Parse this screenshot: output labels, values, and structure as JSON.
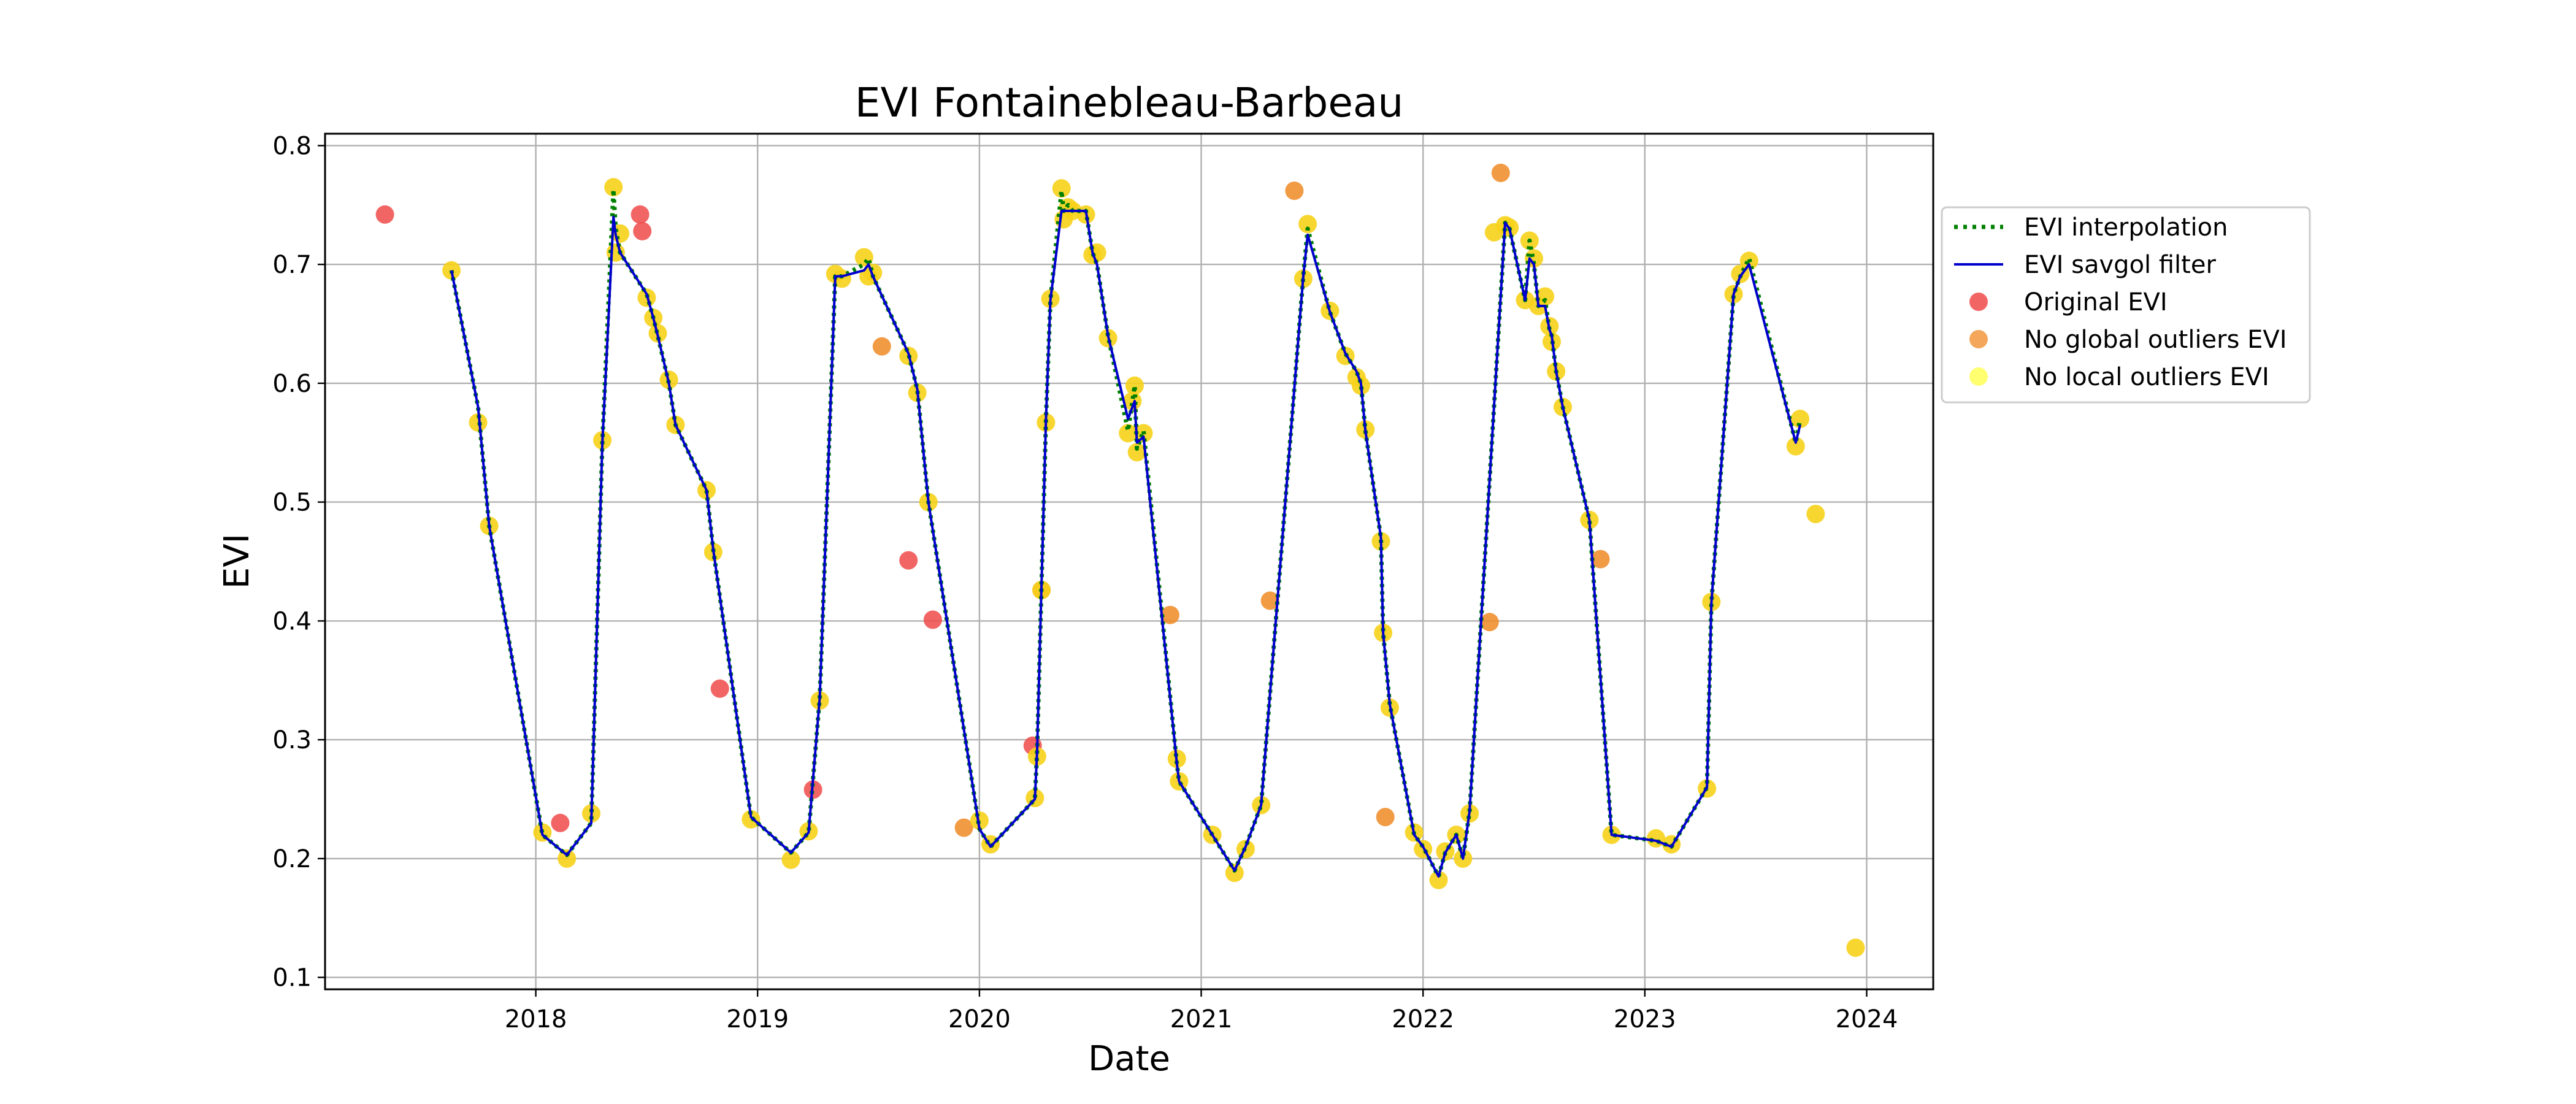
{
  "chart_data": {
    "type": "line",
    "title": "EVI Fontainebleau-Barbeau",
    "xlabel": "Date",
    "ylabel": "EVI",
    "xlim": [
      2017.05,
      2024.3
    ],
    "ylim": [
      0.09,
      0.81
    ],
    "x_ticks": [
      {
        "value": 2018,
        "label": "2018"
      },
      {
        "value": 2019,
        "label": "2019"
      },
      {
        "value": 2020,
        "label": "2020"
      },
      {
        "value": 2021,
        "label": "2021"
      },
      {
        "value": 2022,
        "label": "2022"
      },
      {
        "value": 2023,
        "label": "2023"
      },
      {
        "value": 2024,
        "label": "2024"
      }
    ],
    "y_ticks": [
      {
        "value": 0.1,
        "label": "0.1"
      },
      {
        "value": 0.2,
        "label": "0.2"
      },
      {
        "value": 0.3,
        "label": "0.3"
      },
      {
        "value": 0.4,
        "label": "0.4"
      },
      {
        "value": 0.5,
        "label": "0.5"
      },
      {
        "value": 0.6,
        "label": "0.6"
      },
      {
        "value": 0.7,
        "label": "0.7"
      },
      {
        "value": 0.8,
        "label": "0.8"
      }
    ],
    "grid": true,
    "legend_position": "outside right",
    "colors": {
      "interpolation": "#008000",
      "savgol": "#0000cc",
      "original": "#f04a4a",
      "global": "#f08a24",
      "local": "#f7d21a"
    },
    "series": [
      {
        "name": "EVI interpolation",
        "kind": "dotted-line",
        "x": [
          2017.62,
          2017.74,
          2017.79,
          2018.03,
          2018.14,
          2018.25,
          2018.3,
          2018.35,
          2018.36,
          2018.38,
          2018.5,
          2018.53,
          2018.55,
          2018.6,
          2018.63,
          2018.77,
          2018.8,
          2018.97,
          2019.15,
          2019.23,
          2019.28,
          2019.35,
          2019.38,
          2019.48,
          2019.5,
          2019.52,
          2019.68,
          2019.72,
          2019.77,
          2020.0,
          2020.05,
          2020.25,
          2020.26,
          2020.28,
          2020.3,
          2020.32,
          2020.37,
          2020.38,
          2020.4,
          2020.42,
          2020.48,
          2020.51,
          2020.53,
          2020.58,
          2020.67,
          2020.69,
          2020.7,
          2020.71,
          2020.74,
          2020.89,
          2020.9,
          2021.05,
          2021.15,
          2021.2,
          2021.27,
          2021.46,
          2021.48,
          2021.58,
          2021.65,
          2021.7,
          2021.72,
          2021.74,
          2021.81,
          2021.82,
          2021.85,
          2021.96,
          2022.0,
          2022.07,
          2022.1,
          2022.15,
          2022.18,
          2022.21,
          2022.37,
          2022.39,
          2022.46,
          2022.48,
          2022.5,
          2022.52,
          2022.55,
          2022.57,
          2022.58,
          2022.6,
          2022.63,
          2022.75,
          2022.85,
          2023.05,
          2023.12,
          2023.28,
          2023.3,
          2023.4,
          2023.43,
          2023.47,
          2023.68,
          2023.7
        ],
        "y": [
          0.695,
          0.58,
          0.48,
          0.22,
          0.203,
          0.23,
          0.55,
          0.763,
          0.73,
          0.71,
          0.675,
          0.655,
          0.64,
          0.6,
          0.565,
          0.51,
          0.46,
          0.235,
          0.205,
          0.222,
          0.335,
          0.69,
          0.69,
          0.7,
          0.705,
          0.69,
          0.625,
          0.595,
          0.5,
          0.225,
          0.21,
          0.25,
          0.29,
          0.43,
          0.57,
          0.67,
          0.762,
          0.745,
          0.75,
          0.745,
          0.745,
          0.71,
          0.7,
          0.64,
          0.56,
          0.585,
          0.598,
          0.545,
          0.56,
          0.28,
          0.265,
          0.22,
          0.19,
          0.21,
          0.245,
          0.69,
          0.73,
          0.66,
          0.625,
          0.61,
          0.6,
          0.56,
          0.47,
          0.39,
          0.33,
          0.22,
          0.21,
          0.185,
          0.205,
          0.22,
          0.2,
          0.24,
          0.735,
          0.73,
          0.67,
          0.72,
          0.7,
          0.665,
          0.67,
          0.645,
          0.64,
          0.61,
          0.58,
          0.485,
          0.22,
          0.215,
          0.21,
          0.26,
          0.415,
          0.675,
          0.69,
          0.705,
          0.55,
          0.57
        ]
      },
      {
        "name": "EVI savgol filter",
        "kind": "line",
        "x": [
          2017.62,
          2017.74,
          2017.79,
          2018.03,
          2018.14,
          2018.25,
          2018.3,
          2018.35,
          2018.36,
          2018.38,
          2018.5,
          2018.53,
          2018.55,
          2018.6,
          2018.63,
          2018.77,
          2018.8,
          2018.97,
          2019.15,
          2019.23,
          2019.28,
          2019.35,
          2019.38,
          2019.48,
          2019.5,
          2019.52,
          2019.68,
          2019.72,
          2019.77,
          2020.0,
          2020.05,
          2020.25,
          2020.26,
          2020.28,
          2020.3,
          2020.32,
          2020.37,
          2020.38,
          2020.4,
          2020.42,
          2020.48,
          2020.51,
          2020.53,
          2020.58,
          2020.67,
          2020.69,
          2020.7,
          2020.71,
          2020.74,
          2020.89,
          2020.9,
          2021.05,
          2021.15,
          2021.2,
          2021.27,
          2021.46,
          2021.48,
          2021.58,
          2021.65,
          2021.7,
          2021.72,
          2021.74,
          2021.81,
          2021.82,
          2021.85,
          2021.96,
          2022.0,
          2022.07,
          2022.1,
          2022.15,
          2022.18,
          2022.21,
          2022.37,
          2022.39,
          2022.46,
          2022.48,
          2022.5,
          2022.52,
          2022.55,
          2022.57,
          2022.58,
          2022.6,
          2022.63,
          2022.75,
          2022.85,
          2023.05,
          2023.12,
          2023.28,
          2023.3,
          2023.4,
          2023.43,
          2023.47,
          2023.68,
          2023.7
        ],
        "y": [
          0.695,
          0.58,
          0.48,
          0.22,
          0.203,
          0.23,
          0.55,
          0.74,
          0.725,
          0.71,
          0.675,
          0.655,
          0.64,
          0.6,
          0.565,
          0.51,
          0.46,
          0.235,
          0.205,
          0.222,
          0.335,
          0.69,
          0.69,
          0.695,
          0.7,
          0.69,
          0.625,
          0.595,
          0.5,
          0.225,
          0.21,
          0.25,
          0.29,
          0.43,
          0.57,
          0.67,
          0.745,
          0.745,
          0.745,
          0.745,
          0.745,
          0.71,
          0.7,
          0.64,
          0.57,
          0.58,
          0.585,
          0.55,
          0.555,
          0.28,
          0.265,
          0.22,
          0.19,
          0.21,
          0.245,
          0.69,
          0.725,
          0.66,
          0.625,
          0.61,
          0.6,
          0.56,
          0.47,
          0.39,
          0.33,
          0.22,
          0.21,
          0.185,
          0.205,
          0.22,
          0.2,
          0.24,
          0.735,
          0.73,
          0.67,
          0.705,
          0.7,
          0.665,
          0.665,
          0.645,
          0.64,
          0.61,
          0.58,
          0.485,
          0.22,
          0.215,
          0.21,
          0.26,
          0.415,
          0.675,
          0.69,
          0.7,
          0.55,
          0.565
        ]
      },
      {
        "name": "Original EVI",
        "kind": "scatter",
        "x": [
          2017.32,
          2018.11,
          2018.47,
          2018.48,
          2018.83,
          2019.25,
          2019.68,
          2019.79,
          2020.24
        ],
        "y": [
          0.742,
          0.23,
          0.742,
          0.728,
          0.343,
          0.258,
          0.451,
          0.401,
          0.295
        ]
      },
      {
        "name": "No global outliers EVI",
        "kind": "scatter",
        "x": [
          2019.56,
          2019.93,
          2020.28,
          2020.86,
          2021.31,
          2021.42,
          2021.83,
          2022.3,
          2022.35,
          2022.8
        ],
        "y": [
          0.631,
          0.226,
          0.426,
          0.405,
          0.417,
          0.762,
          0.235,
          0.399,
          0.777,
          0.452
        ]
      },
      {
        "name": "No local outliers EVI",
        "kind": "scatter",
        "x": [
          2017.62,
          2017.74,
          2017.79,
          2018.03,
          2018.14,
          2018.25,
          2018.3,
          2018.35,
          2018.36,
          2018.38,
          2018.5,
          2018.53,
          2018.55,
          2018.6,
          2018.63,
          2018.77,
          2018.8,
          2018.97,
          2019.15,
          2019.23,
          2019.28,
          2019.35,
          2019.38,
          2019.48,
          2019.5,
          2019.52,
          2019.68,
          2019.72,
          2019.77,
          2020.0,
          2020.05,
          2020.25,
          2020.26,
          2020.28,
          2020.3,
          2020.32,
          2020.37,
          2020.38,
          2020.4,
          2020.42,
          2020.48,
          2020.51,
          2020.53,
          2020.58,
          2020.67,
          2020.69,
          2020.7,
          2020.71,
          2020.74,
          2020.89,
          2020.9,
          2021.05,
          2021.15,
          2021.2,
          2021.27,
          2021.46,
          2021.48,
          2021.58,
          2021.65,
          2021.7,
          2021.72,
          2021.74,
          2021.81,
          2021.82,
          2021.85,
          2021.96,
          2022.0,
          2022.07,
          2022.1,
          2022.15,
          2022.18,
          2022.21,
          2022.32,
          2022.37,
          2022.39,
          2022.46,
          2022.48,
          2022.5,
          2022.52,
          2022.55,
          2022.57,
          2022.58,
          2022.6,
          2022.63,
          2022.75,
          2022.85,
          2023.05,
          2023.12,
          2023.28,
          2023.3,
          2023.4,
          2023.43,
          2023.47,
          2023.68,
          2023.7,
          2023.77,
          2023.95
        ],
        "y": [
          0.695,
          0.567,
          0.48,
          0.222,
          0.2,
          0.238,
          0.552,
          0.765,
          0.71,
          0.726,
          0.672,
          0.655,
          0.642,
          0.603,
          0.565,
          0.51,
          0.458,
          0.233,
          0.199,
          0.223,
          0.333,
          0.692,
          0.688,
          0.706,
          0.69,
          0.693,
          0.623,
          0.592,
          0.5,
          0.232,
          0.212,
          0.251,
          0.286,
          0.426,
          0.567,
          0.671,
          0.764,
          0.738,
          0.748,
          0.745,
          0.742,
          0.708,
          0.71,
          0.638,
          0.558,
          0.585,
          0.598,
          0.542,
          0.558,
          0.284,
          0.265,
          0.22,
          0.188,
          0.208,
          0.245,
          0.688,
          0.734,
          0.661,
          0.623,
          0.605,
          0.598,
          0.561,
          0.467,
          0.39,
          0.327,
          0.222,
          0.208,
          0.182,
          0.206,
          0.22,
          0.2,
          0.238,
          0.727,
          0.733,
          0.731,
          0.67,
          0.72,
          0.705,
          0.665,
          0.673,
          0.648,
          0.635,
          0.61,
          0.58,
          0.485,
          0.22,
          0.217,
          0.212,
          0.259,
          0.416,
          0.675,
          0.692,
          0.703,
          0.547,
          0.57,
          0.49,
          0.125
        ]
      }
    ]
  }
}
